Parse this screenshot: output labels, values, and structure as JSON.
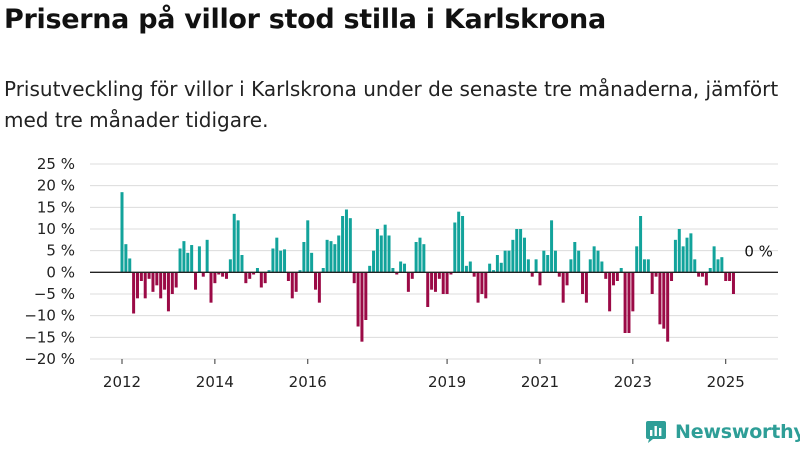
{
  "header": {
    "title": "Priserna på villor stod stilla i Karlskrona",
    "subtitle": "Prisutveckling för villor i Karlskrona under de senaste tre månaderna, jämfört med tre månader tidigare."
  },
  "brand": {
    "name": "Newsworthy",
    "color": "#2e9e97"
  },
  "chart_data": {
    "type": "bar",
    "x_start": "2012-01",
    "ylim": [
      -20,
      25
    ],
    "yticks": [
      25,
      20,
      15,
      10,
      5,
      0,
      -5,
      -10,
      -15,
      -20
    ],
    "ytick_labels": [
      "25 %",
      "20 %",
      "15 %",
      "10 %",
      "5 %",
      "0 %",
      "−5 %",
      "−10 %",
      "−15 %",
      "−20 %"
    ],
    "xtick_labels": [
      {
        "label": "2012",
        "month": "2012-01"
      },
      {
        "label": "2014",
        "month": "2014-01"
      },
      {
        "label": "2016",
        "month": "2016-01"
      },
      {
        "label": "2019",
        "month": "2019-01"
      },
      {
        "label": "2021",
        "month": "2021-01"
      },
      {
        "label": "2023",
        "month": "2023-01"
      },
      {
        "label": "2025",
        "month": "2025-01"
      }
    ],
    "grid": true,
    "colors": {
      "positive": "#12a39b",
      "negative": "#9b0a46"
    },
    "annotation": {
      "text": "0 %",
      "month": "2025-04",
      "value": 0
    },
    "values": [
      18.5,
      6.5,
      3.2,
      -9.5,
      -6,
      -2,
      -6,
      -1.5,
      -4.5,
      -3,
      -6,
      -4,
      -9,
      -5,
      -3.5,
      5.5,
      7.2,
      4.5,
      6.3,
      -4,
      6,
      -1,
      7.5,
      -7,
      -2.5,
      -0.5,
      -1,
      -1.5,
      3,
      13.5,
      12,
      4,
      -2.5,
      -1.5,
      -0.5,
      1,
      -3.5,
      -2.5,
      0.5,
      5.5,
      8,
      5,
      5.3,
      -2,
      -6,
      -4.5,
      0.5,
      7,
      12,
      4.5,
      -4,
      -7,
      1,
      7.5,
      7.2,
      6.5,
      8.5,
      13,
      14.5,
      12.5,
      -2.5,
      -12.5,
      -16,
      -11,
      1.5,
      5,
      10,
      8.5,
      11,
      8.5,
      1,
      -0.5,
      2.5,
      2,
      -4.5,
      -1.5,
      7,
      8,
      6.5,
      -8,
      -4,
      -4.5,
      -1.5,
      -5,
      -5,
      -0.5,
      11.5,
      14,
      13,
      1.5,
      2.5,
      -1,
      -7,
      -5,
      -6,
      2,
      0.5,
      4,
      2.2,
      5,
      5,
      7.5,
      10,
      10,
      8,
      3,
      -1,
      3,
      -3,
      5,
      4,
      12,
      5,
      -1,
      -7,
      -3,
      3,
      7,
      5,
      -5,
      -7,
      3,
      6,
      5,
      2.5,
      -1.5,
      -9,
      -3,
      -2,
      1,
      -14,
      -14,
      -9,
      6,
      13,
      3,
      3,
      -5,
      -1,
      -12,
      -13,
      -16,
      -2,
      7.5,
      10,
      6,
      8,
      9,
      3,
      -1,
      -1,
      -3,
      1,
      6,
      3,
      3.5,
      -2,
      -2,
      -5
    ]
  }
}
